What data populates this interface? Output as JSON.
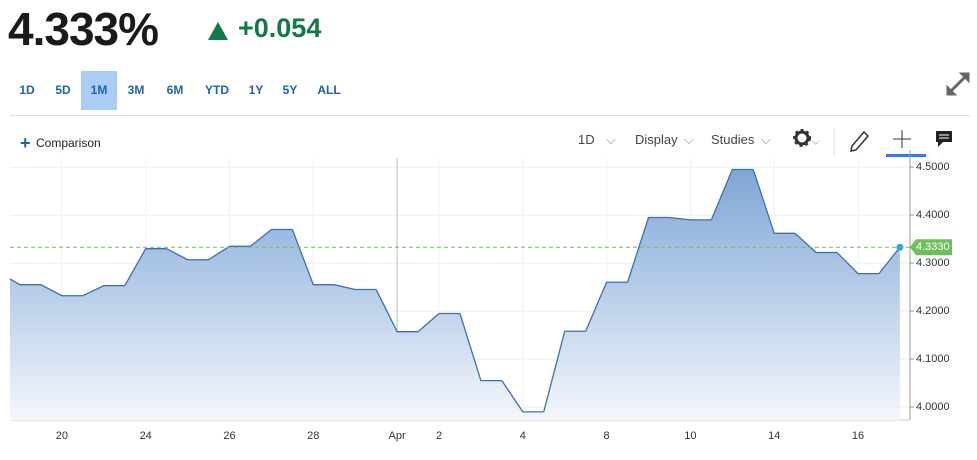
{
  "header": {
    "price": "4.333%",
    "change": "+0.054"
  },
  "ranges": [
    "1D",
    "5D",
    "1M",
    "3M",
    "6M",
    "YTD",
    "1Y",
    "5Y",
    "ALL"
  ],
  "selected_range": "1M",
  "toolbar": {
    "comparison": "Comparison",
    "interval": "1D",
    "display": "Display",
    "studies": "Studies"
  },
  "chart_data": {
    "type": "line",
    "categories": [
      null,
      null,
      "20",
      null,
      "24",
      null,
      "26",
      null,
      "28",
      null,
      "Apr",
      "2",
      null,
      "4",
      null,
      "8",
      null,
      "10",
      null,
      "14",
      null,
      "16",
      null
    ],
    "values": [
      4.28,
      4.255,
      4.232,
      4.253,
      4.33,
      4.307,
      4.335,
      4.37,
      4.255,
      4.245,
      4.157,
      4.195,
      4.055,
      3.99,
      4.158,
      4.26,
      4.395,
      4.39,
      4.495,
      4.362,
      4.322,
      4.278,
      4.333
    ],
    "last_label": "4.3330",
    "color": "#3a70b2",
    "ylim": [
      3.973,
      4.519
    ],
    "yticks": [
      {
        "value": 4.0,
        "label": "4.0000"
      },
      {
        "value": 4.1,
        "label": "4.1000"
      },
      {
        "value": 4.2,
        "label": "4.2000"
      },
      {
        "value": 4.3,
        "label": "4.3000"
      },
      {
        "value": 4.4,
        "label": "4.4000"
      },
      {
        "value": 4.5,
        "label": "4.5000"
      }
    ],
    "grid": true
  }
}
